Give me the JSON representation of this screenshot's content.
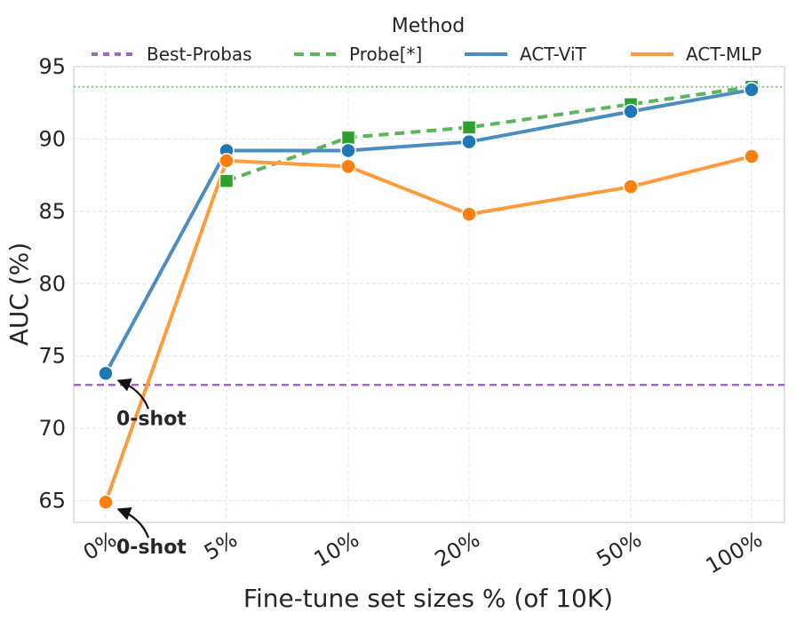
{
  "chart_data": {
    "type": "line",
    "xlabel": "Fine-tune set sizes % (of 10K)",
    "ylabel": "AUC (%)",
    "categories": [
      "0%",
      "5%",
      "10%",
      "20%",
      "50%",
      "100%"
    ],
    "ylim": [
      63.5,
      95
    ],
    "yticks": [
      65,
      70,
      75,
      80,
      85,
      90,
      95
    ],
    "grid": true,
    "legend": {
      "title": "Method",
      "placement": "top",
      "entries": [
        "Best-Probas",
        "Probe[*]",
        "ACT-ViT",
        "ACT-MLP"
      ]
    },
    "series": [
      {
        "name": "ACT-ViT",
        "color": "#4a8dc2",
        "marker": "circle",
        "style": "solid",
        "values": [
          73.8,
          89.2,
          89.2,
          89.8,
          91.9,
          93.4
        ]
      },
      {
        "name": "ACT-MLP",
        "color": "#ff9b3d",
        "marker": "circle",
        "style": "solid",
        "values": [
          64.9,
          88.5,
          88.1,
          84.8,
          86.7,
          88.8
        ]
      },
      {
        "name": "Probe[*]",
        "color": "#5bb55b",
        "marker": "square",
        "style": "dashed",
        "values": [
          null,
          87.1,
          90.1,
          90.8,
          92.4,
          93.6
        ]
      }
    ],
    "reference_lines": [
      {
        "name": "Best-Probas",
        "value": 73.0,
        "color": "#9d6bbd",
        "style": "dashed"
      },
      {
        "name": "Probe[*] level",
        "value": 93.6,
        "color": "#7fcf7f",
        "style": "dotted"
      }
    ],
    "annotations": [
      {
        "text": "0-shot",
        "target_series": "ACT-ViT",
        "target_x": "0%"
      },
      {
        "text": "0-shot",
        "target_series": "ACT-MLP",
        "target_x": "0%"
      }
    ]
  }
}
